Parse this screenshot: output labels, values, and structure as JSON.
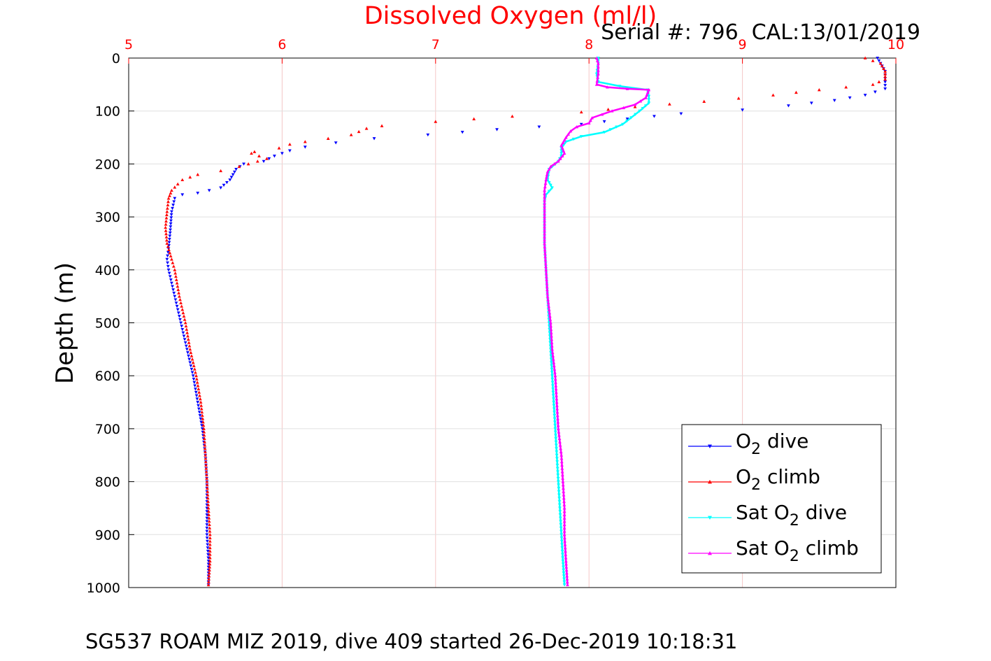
{
  "chart_data": {
    "type": "line",
    "title": "Dissolved Oxygen (ml/l)",
    "subtitle": "Serial #: 796  CAL:13/01/2019",
    "caption": "SG537 ROAM MIZ 2019, dive 409 started 26-Dec-2019 10:18:31",
    "ylabel": "Depth (m)",
    "xlabel": "",
    "xlim": [
      5,
      10
    ],
    "ylim": [
      0,
      1000
    ],
    "y_inverted": true,
    "x_axis_position": "top",
    "grid": true,
    "x_ticks": [
      "5",
      "6",
      "7",
      "8",
      "9",
      "10"
    ],
    "y_ticks": [
      "0",
      "100",
      "200",
      "300",
      "400",
      "500",
      "600",
      "700",
      "800",
      "900",
      "1000"
    ],
    "legend_position": "bottom-right",
    "colors": {
      "title": "#ff0000",
      "x_tick_labels": "#ff0000",
      "grid": "#f4c6c6"
    },
    "series": [
      {
        "name": "O<sub>2</sub> dive",
        "legend_main": "O",
        "legend_sub": "2",
        "legend_rest": " dive",
        "color": "#0000ff",
        "marker": "triangle-down",
        "points": [
          [
            9.88,
            0
          ],
          [
            9.9,
            10
          ],
          [
            9.93,
            25
          ],
          [
            9.93,
            45
          ],
          [
            9.93,
            58
          ],
          [
            9.8,
            70
          ],
          [
            9.6,
            80
          ],
          [
            9.3,
            90
          ],
          [
            9.0,
            98
          ],
          [
            8.6,
            105
          ],
          [
            8.25,
            115
          ],
          [
            7.95,
            125
          ],
          [
            7.4,
            135
          ],
          [
            6.95,
            145
          ],
          [
            6.6,
            152
          ],
          [
            6.35,
            160
          ],
          [
            6.15,
            168
          ],
          [
            6.05,
            175
          ],
          [
            5.95,
            185
          ],
          [
            5.88,
            195
          ],
          [
            5.75,
            200
          ],
          [
            5.7,
            210
          ],
          [
            5.68,
            220
          ],
          [
            5.66,
            230
          ],
          [
            5.6,
            245
          ],
          [
            5.45,
            255
          ],
          [
            5.35,
            258
          ],
          [
            5.3,
            265
          ],
          [
            5.28,
            290
          ],
          [
            5.27,
            330
          ],
          [
            5.26,
            360
          ],
          [
            5.25,
            380
          ],
          [
            5.26,
            400
          ],
          [
            5.3,
            450
          ],
          [
            5.34,
            500
          ],
          [
            5.38,
            550
          ],
          [
            5.42,
            600
          ],
          [
            5.45,
            650
          ],
          [
            5.48,
            700
          ],
          [
            5.5,
            750
          ],
          [
            5.51,
            800
          ],
          [
            5.51,
            850
          ],
          [
            5.51,
            900
          ],
          [
            5.52,
            950
          ],
          [
            5.52,
            995
          ]
        ]
      },
      {
        "name": "O<sub>2</sub> climb",
        "legend_main": "O",
        "legend_sub": "2",
        "legend_rest": " climb",
        "color": "#ff0000",
        "marker": "triangle-up",
        "points": [
          [
            9.8,
            0
          ],
          [
            9.9,
            10
          ],
          [
            9.93,
            25
          ],
          [
            9.93,
            40
          ],
          [
            9.85,
            50
          ],
          [
            9.5,
            60
          ],
          [
            9.2,
            70
          ],
          [
            8.75,
            82
          ],
          [
            8.3,
            92
          ],
          [
            7.95,
            102
          ],
          [
            7.5,
            110
          ],
          [
            7.0,
            120
          ],
          [
            6.65,
            128
          ],
          [
            6.55,
            133
          ],
          [
            6.45,
            145
          ],
          [
            6.3,
            152
          ],
          [
            6.15,
            158
          ],
          [
            6.05,
            163
          ],
          [
            5.98,
            170
          ],
          [
            5.82,
            177
          ],
          [
            5.8,
            180
          ],
          [
            5.9,
            190
          ],
          [
            5.72,
            205
          ],
          [
            5.6,
            213
          ],
          [
            5.45,
            220
          ],
          [
            5.35,
            230
          ],
          [
            5.32,
            238
          ],
          [
            5.28,
            250
          ],
          [
            5.26,
            265
          ],
          [
            5.25,
            290
          ],
          [
            5.24,
            320
          ],
          [
            5.25,
            350
          ],
          [
            5.28,
            380
          ],
          [
            5.3,
            400
          ],
          [
            5.33,
            450
          ],
          [
            5.37,
            500
          ],
          [
            5.4,
            550
          ],
          [
            5.44,
            600
          ],
          [
            5.47,
            650
          ],
          [
            5.49,
            700
          ],
          [
            5.5,
            750
          ],
          [
            5.51,
            800
          ],
          [
            5.52,
            850
          ],
          [
            5.53,
            900
          ],
          [
            5.53,
            950
          ],
          [
            5.52,
            995
          ]
        ]
      },
      {
        "name": "Sat O<sub>2</sub> dive",
        "legend_main": "Sat O",
        "legend_sub": "2",
        "legend_rest": " dive",
        "color": "#00ffff",
        "marker": "triangle-down",
        "points": [
          [
            8.06,
            0
          ],
          [
            8.06,
            10
          ],
          [
            8.05,
            30
          ],
          [
            8.06,
            45
          ],
          [
            8.2,
            53
          ],
          [
            8.38,
            60
          ],
          [
            8.39,
            72
          ],
          [
            8.39,
            85
          ],
          [
            8.33,
            100
          ],
          [
            8.22,
            125
          ],
          [
            8.1,
            140
          ],
          [
            7.95,
            148
          ],
          [
            7.85,
            158
          ],
          [
            7.82,
            170
          ],
          [
            7.82,
            185
          ],
          [
            7.8,
            195
          ],
          [
            7.74,
            210
          ],
          [
            7.73,
            230
          ],
          [
            7.76,
            245
          ],
          [
            7.72,
            258
          ],
          [
            7.71,
            270
          ],
          [
            7.71,
            300
          ],
          [
            7.71,
            350
          ],
          [
            7.72,
            400
          ],
          [
            7.73,
            450
          ],
          [
            7.74,
            500
          ],
          [
            7.75,
            550
          ],
          [
            7.76,
            600
          ],
          [
            7.77,
            650
          ],
          [
            7.78,
            700
          ],
          [
            7.79,
            750
          ],
          [
            7.8,
            800
          ],
          [
            7.81,
            850
          ],
          [
            7.82,
            900
          ],
          [
            7.83,
            950
          ],
          [
            7.84,
            995
          ]
        ]
      },
      {
        "name": "Sat O<sub>2</sub> climb",
        "legend_main": "Sat O",
        "legend_sub": "2",
        "legend_rest": " climb",
        "color": "#ff00ff",
        "marker": "triangle-up",
        "points": [
          [
            8.05,
            0
          ],
          [
            8.06,
            10
          ],
          [
            8.06,
            30
          ],
          [
            8.05,
            50
          ],
          [
            8.12,
            55
          ],
          [
            8.25,
            58
          ],
          [
            8.39,
            60
          ],
          [
            8.37,
            75
          ],
          [
            8.3,
            88
          ],
          [
            8.15,
            100
          ],
          [
            8.02,
            113
          ],
          [
            8.0,
            123
          ],
          [
            7.92,
            130
          ],
          [
            7.88,
            138
          ],
          [
            7.85,
            150
          ],
          [
            7.82,
            165
          ],
          [
            7.84,
            180
          ],
          [
            7.8,
            195
          ],
          [
            7.75,
            205
          ],
          [
            7.73,
            215
          ],
          [
            7.72,
            230
          ],
          [
            7.71,
            250
          ],
          [
            7.71,
            300
          ],
          [
            7.71,
            350
          ],
          [
            7.72,
            400
          ],
          [
            7.73,
            450
          ],
          [
            7.75,
            500
          ],
          [
            7.76,
            550
          ],
          [
            7.78,
            600
          ],
          [
            7.79,
            650
          ],
          [
            7.8,
            700
          ],
          [
            7.82,
            750
          ],
          [
            7.83,
            800
          ],
          [
            7.84,
            850
          ],
          [
            7.84,
            900
          ],
          [
            7.85,
            950
          ],
          [
            7.86,
            995
          ]
        ]
      }
    ]
  }
}
